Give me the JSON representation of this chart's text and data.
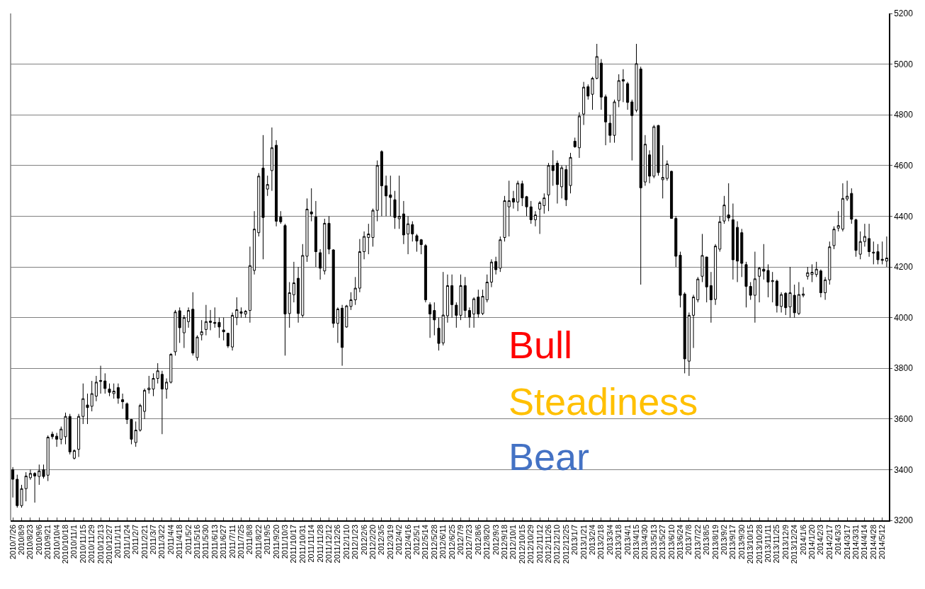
{
  "chart_data": {
    "type": "candlestick",
    "categories": [
      "2010/7/26",
      null,
      "2010/8/9",
      null,
      "2010/8/23",
      null,
      "2010/9/6",
      null,
      "2010/9/21",
      null,
      "2010/10/4",
      null,
      "2010/10/18",
      null,
      "2010/11/1",
      null,
      "2010/11/15",
      null,
      "2010/11/29",
      null,
      "2010/12/13",
      null,
      "2010/12/27",
      null,
      "2011/1/11",
      null,
      "2011/1/24",
      null,
      "2011/2/7",
      null,
      "2011/2/21",
      null,
      "2011/3/7",
      null,
      "2011/3/22",
      null,
      "2011/4/4",
      null,
      "2011/4/18",
      null,
      "2011/5/2",
      null,
      "2011/5/16",
      null,
      "2011/5/30",
      null,
      "2011/6/13",
      null,
      "2011/6/27",
      null,
      "2011/7/11",
      null,
      "2011/7/25",
      null,
      "2011/8/8",
      null,
      "2011/8/22",
      null,
      "2011/9/5",
      null,
      "2011/9/20",
      null,
      "2011/10/3",
      null,
      "2011/10/17",
      null,
      "2011/10/31",
      null,
      "2011/11/14",
      null,
      "2011/11/28",
      null,
      "2011/12/12",
      null,
      "2011/12/26",
      null,
      "2012/1/10",
      null,
      "2012/1/23",
      null,
      "2012/2/6",
      null,
      "2012/2/20",
      null,
      "2012/3/5",
      null,
      "2012/3/19",
      null,
      "2012/4/2",
      null,
      "2012/4/16",
      null,
      "2012/5/1",
      null,
      "2012/5/14",
      null,
      "2012/5/28",
      null,
      "2012/6/11",
      null,
      "2012/6/25",
      null,
      "2012/7/9",
      null,
      "2012/7/23",
      null,
      "2012/8/6",
      null,
      "2012/8/20",
      null,
      "2012/9/3",
      null,
      "2012/9/18",
      null,
      "2012/10/1",
      null,
      "2012/10/15",
      null,
      "2012/10/29",
      null,
      "2012/11/12",
      null,
      "2012/11/26",
      null,
      "2012/12/10",
      null,
      "2012/12/25",
      null,
      "2013/1/7",
      null,
      "2013/1/21",
      null,
      "2013/2/4",
      null,
      "2013/2/18",
      null,
      "2013/3/4",
      null,
      "2013/3/18",
      null,
      "2013/4/1",
      null,
      "2013/4/15",
      null,
      "2013/4/30",
      null,
      "2013/5/13",
      null,
      "2013/5/27",
      null,
      "2013/6/10",
      null,
      "2013/6/24",
      null,
      "2013/7/8",
      null,
      "2013/7/22",
      null,
      "2013/8/5",
      null,
      "2013/8/19",
      null,
      "2013/9/2",
      null,
      "2013/9/17",
      null,
      "2013/9/30",
      null,
      "2013/10/15",
      null,
      "2013/10/28",
      null,
      "2013/11/11",
      null,
      "2013/11/25",
      null,
      "2013/12/9",
      null,
      "2013/12/24",
      null,
      "2014/1/6",
      null,
      "2014/1/20",
      null,
      "2014/2/3",
      null,
      "2014/2/17",
      null,
      "2014/3/3",
      null,
      "2014/3/17",
      null,
      "2014/3/31",
      null,
      "2014/4/14",
      null,
      "2014/4/28",
      null,
      "2014/5/12",
      null
    ],
    "ohlc": [
      [
        3400,
        3410,
        3290,
        3362
      ],
      [
        3362,
        3380,
        3250,
        3258
      ],
      [
        3258,
        3340,
        3250,
        3325
      ],
      [
        3325,
        3390,
        3275,
        3375
      ],
      [
        3368,
        3400,
        3360,
        3385
      ],
      [
        3385,
        3390,
        3270,
        3375
      ],
      [
        3373,
        3420,
        3340,
        3395
      ],
      [
        3400,
        3420,
        3365,
        3373
      ],
      [
        3378,
        3535,
        3355,
        3528
      ],
      [
        3540,
        3550,
        3520,
        3530
      ],
      [
        3532,
        3545,
        3490,
        3520
      ],
      [
        3520,
        3570,
        3500,
        3560
      ],
      [
        3530,
        3625,
        3500,
        3610
      ],
      [
        3610,
        3620,
        3460,
        3470
      ],
      [
        3445,
        3480,
        3440,
        3475
      ],
      [
        3480,
        3620,
        3450,
        3610
      ],
      [
        3610,
        3740,
        3580,
        3680
      ],
      [
        3655,
        3700,
        3580,
        3645
      ],
      [
        3650,
        3750,
        3630,
        3700
      ],
      [
        3690,
        3770,
        3670,
        3745
      ],
      [
        3752,
        3810,
        3700,
        3748
      ],
      [
        3750,
        3780,
        3700,
        3720
      ],
      [
        3718,
        3740,
        3690,
        3705
      ],
      [
        3700,
        3740,
        3680,
        3710
      ],
      [
        3724,
        3740,
        3660,
        3682
      ],
      [
        3676,
        3700,
        3640,
        3668
      ],
      [
        3660,
        3665,
        3580,
        3598
      ],
      [
        3598,
        3600,
        3500,
        3520
      ],
      [
        3507,
        3590,
        3490,
        3556
      ],
      [
        3556,
        3660,
        3550,
        3653
      ],
      [
        3630,
        3720,
        3600,
        3713
      ],
      [
        3715,
        3770,
        3700,
        3722
      ],
      [
        3718,
        3780,
        3690,
        3760
      ],
      [
        3760,
        3820,
        3740,
        3790
      ],
      [
        3776,
        3790,
        3540,
        3718
      ],
      [
        3718,
        3760,
        3680,
        3745
      ],
      [
        3745,
        3860,
        3740,
        3855
      ],
      [
        3865,
        4030,
        3850,
        4022
      ],
      [
        4027,
        4040,
        3900,
        3960
      ],
      [
        3940,
        4010,
        3880,
        4000
      ],
      [
        3984,
        4040,
        3960,
        4028
      ],
      [
        4033,
        4100,
        3850,
        3860
      ],
      [
        3842,
        3930,
        3830,
        3923
      ],
      [
        3932,
        3990,
        3910,
        3944
      ],
      [
        3953,
        4050,
        3930,
        3984
      ],
      [
        3986,
        4030,
        3950,
        3981
      ],
      [
        3981,
        4040,
        3960,
        3977
      ],
      [
        3981,
        4000,
        3920,
        3963
      ],
      [
        3951,
        4000,
        3910,
        3944
      ],
      [
        3938,
        3940,
        3880,
        3888
      ],
      [
        3884,
        4020,
        3870,
        4009
      ],
      [
        4000,
        4080,
        3970,
        4031
      ],
      [
        4023,
        4040,
        4000,
        4017
      ],
      [
        4014,
        4030,
        4000,
        4025
      ],
      [
        4028,
        4280,
        3980,
        4205
      ],
      [
        4186,
        4420,
        4170,
        4349
      ],
      [
        4335,
        4570,
        4320,
        4558
      ],
      [
        4590,
        4720,
        4230,
        4395
      ],
      [
        4507,
        4560,
        4480,
        4525
      ],
      [
        4580,
        4750,
        4500,
        4670
      ],
      [
        4680,
        4700,
        4360,
        4380
      ],
      [
        4397,
        4420,
        4370,
        4378
      ],
      [
        4363,
        4370,
        3850,
        4014
      ],
      [
        4016,
        4140,
        3960,
        4098
      ],
      [
        4090,
        4220,
        4060,
        4137
      ],
      [
        4155,
        4200,
        3980,
        4016
      ],
      [
        4009,
        4290,
        4000,
        4245
      ],
      [
        4242,
        4470,
        4220,
        4428
      ],
      [
        4417,
        4510,
        4380,
        4409
      ],
      [
        4397,
        4460,
        4200,
        4260
      ],
      [
        4256,
        4270,
        4150,
        4195
      ],
      [
        4184,
        4390,
        4170,
        4372
      ],
      [
        4372,
        4400,
        4250,
        4270
      ],
      [
        4267,
        4270,
        3960,
        3977
      ],
      [
        3977,
        4040,
        3900,
        4034
      ],
      [
        4037,
        4050,
        3810,
        3882
      ],
      [
        3963,
        4050,
        3960,
        4046
      ],
      [
        4044,
        4100,
        4030,
        4070
      ],
      [
        4070,
        4160,
        4050,
        4116
      ],
      [
        4116,
        4310,
        4100,
        4260
      ],
      [
        4260,
        4340,
        4230,
        4320
      ],
      [
        4316,
        4370,
        4250,
        4330
      ],
      [
        4316,
        4430,
        4280,
        4423
      ],
      [
        4423,
        4620,
        4380,
        4600
      ],
      [
        4655,
        4660,
        4400,
        4520
      ],
      [
        4520,
        4560,
        4400,
        4480
      ],
      [
        4484,
        4560,
        4400,
        4474
      ],
      [
        4465,
        4500,
        4350,
        4395
      ],
      [
        4390,
        4560,
        4350,
        4400
      ],
      [
        4409,
        4460,
        4290,
        4326
      ],
      [
        4330,
        4400,
        4250,
        4370
      ],
      [
        4367,
        4380,
        4300,
        4330
      ],
      [
        4323,
        4330,
        4260,
        4302
      ],
      [
        4307,
        4310,
        4250,
        4288
      ],
      [
        4284,
        4290,
        4060,
        4070
      ],
      [
        4051,
        4060,
        3920,
        4014
      ],
      [
        4028,
        4060,
        3930,
        3991
      ],
      [
        3958,
        4000,
        3870,
        3898
      ],
      [
        3900,
        4180,
        3890,
        4010
      ],
      [
        4007,
        4170,
        3980,
        4126
      ],
      [
        4126,
        4170,
        4000,
        4051
      ],
      [
        4049,
        4060,
        3960,
        4009
      ],
      [
        4009,
        4170,
        3990,
        4126
      ],
      [
        4126,
        4160,
        4000,
        4028
      ],
      [
        4028,
        4040,
        3960,
        4002
      ],
      [
        4014,
        4080,
        3960,
        4074
      ],
      [
        4081,
        4110,
        4000,
        4014
      ],
      [
        4016,
        4110,
        4010,
        4084
      ],
      [
        4070,
        4170,
        4060,
        4140
      ],
      [
        4140,
        4230,
        4120,
        4219
      ],
      [
        4221,
        4240,
        4170,
        4189
      ],
      [
        4195,
        4320,
        4180,
        4307
      ],
      [
        4316,
        4480,
        4300,
        4461
      ],
      [
        4437,
        4540,
        4320,
        4461
      ],
      [
        4470,
        4500,
        4430,
        4456
      ],
      [
        4456,
        4540,
        4420,
        4530
      ],
      [
        4528,
        4540,
        4440,
        4472
      ],
      [
        4477,
        4480,
        4400,
        4437
      ],
      [
        4437,
        4460,
        4370,
        4386
      ],
      [
        4386,
        4420,
        4360,
        4405
      ],
      [
        4428,
        4460,
        4330,
        4453
      ],
      [
        4442,
        4490,
        4410,
        4472
      ],
      [
        4484,
        4610,
        4420,
        4600
      ],
      [
        4600,
        4660,
        4520,
        4580
      ],
      [
        4609,
        4620,
        4450,
        4525
      ],
      [
        4516,
        4600,
        4470,
        4591
      ],
      [
        4584,
        4600,
        4440,
        4465
      ],
      [
        4521,
        4650,
        4490,
        4632
      ],
      [
        4696,
        4710,
        4670,
        4674
      ],
      [
        4670,
        4810,
        4630,
        4795
      ],
      [
        4803,
        4930,
        4760,
        4909
      ],
      [
        4911,
        4920,
        4860,
        4874
      ],
      [
        4881,
        4950,
        4820,
        4944
      ],
      [
        4944,
        5080,
        4940,
        5030
      ],
      [
        5004,
        5020,
        4820,
        4870
      ],
      [
        4871,
        4880,
        4680,
        4772
      ],
      [
        4767,
        4800,
        4690,
        4719
      ],
      [
        4719,
        4860,
        4690,
        4851
      ],
      [
        4856,
        4960,
        4830,
        4935
      ],
      [
        4939,
        4980,
        4850,
        4933
      ],
      [
        4923,
        4930,
        4820,
        4849
      ],
      [
        4851,
        4860,
        4620,
        4797
      ],
      [
        4818,
        5080,
        4810,
        5002
      ],
      [
        4981,
        4990,
        4130,
        4512
      ],
      [
        4535,
        4720,
        4520,
        4684
      ],
      [
        4642,
        4660,
        4530,
        4558
      ],
      [
        4558,
        4760,
        4550,
        4753
      ],
      [
        4758,
        4760,
        4560,
        4572
      ],
      [
        4544,
        4680,
        4470,
        4553
      ],
      [
        4549,
        4620,
        4540,
        4606
      ],
      [
        4577,
        4580,
        4390,
        4391
      ],
      [
        4391,
        4400,
        4200,
        4242
      ],
      [
        4246,
        4260,
        4040,
        4088
      ],
      [
        4093,
        4100,
        3780,
        3837
      ],
      [
        3828,
        4020,
        3770,
        4009
      ],
      [
        4009,
        4090,
        3880,
        4081
      ],
      [
        4070,
        4160,
        4060,
        4152
      ],
      [
        4163,
        4330,
        4140,
        4245
      ],
      [
        4239,
        4240,
        4060,
        4121
      ],
      [
        4126,
        4180,
        3980,
        4070
      ],
      [
        4072,
        4290,
        4050,
        4282
      ],
      [
        4270,
        4400,
        4260,
        4378
      ],
      [
        4381,
        4480,
        4370,
        4444
      ],
      [
        4405,
        4530,
        4380,
        4393
      ],
      [
        4386,
        4450,
        4150,
        4228
      ],
      [
        4356,
        4380,
        4140,
        4223
      ],
      [
        4335,
        4350,
        4160,
        4214
      ],
      [
        4209,
        4220,
        4040,
        4123
      ],
      [
        4123,
        4140,
        4070,
        4088
      ],
      [
        4088,
        4260,
        3980,
        4153
      ],
      [
        4163,
        4200,
        4060,
        4195
      ],
      [
        4191,
        4290,
        4150,
        4183
      ],
      [
        4186,
        4210,
        4080,
        4140
      ],
      [
        4142,
        4180,
        4060,
        4146
      ],
      [
        4144,
        4150,
        4020,
        4047
      ],
      [
        4044,
        4100,
        4020,
        4091
      ],
      [
        4096,
        4100,
        4010,
        4039
      ],
      [
        4042,
        4200,
        4000,
        4098
      ],
      [
        4088,
        4130,
        4000,
        4019
      ],
      [
        4016,
        4140,
        4010,
        4091
      ],
      [
        4088,
        4120,
        4080,
        4093
      ],
      [
        4163,
        4200,
        4150,
        4177
      ],
      [
        4170,
        4210,
        4140,
        4179
      ],
      [
        4170,
        4220,
        4160,
        4191
      ],
      [
        4184,
        4190,
        4080,
        4098
      ],
      [
        4098,
        4160,
        4070,
        4149
      ],
      [
        4149,
        4300,
        4130,
        4279
      ],
      [
        4284,
        4360,
        4270,
        4349
      ],
      [
        4353,
        4420,
        4340,
        4363
      ],
      [
        4349,
        4530,
        4340,
        4470
      ],
      [
        4468,
        4540,
        4460,
        4479
      ],
      [
        4490,
        4510,
        4370,
        4388
      ],
      [
        4386,
        4390,
        4240,
        4265
      ],
      [
        4250,
        4340,
        4230,
        4300
      ],
      [
        4300,
        4370,
        4280,
        4320
      ],
      [
        4312,
        4370,
        4240,
        4260
      ],
      [
        4258,
        4300,
        4210,
        4255
      ],
      [
        4260,
        4290,
        4210,
        4228
      ],
      [
        4230,
        4300,
        4210,
        4226
      ],
      [
        4223,
        4320,
        4200,
        4235
      ]
    ],
    "ylim": [
      3200,
      5200
    ],
    "yticks": [
      3200,
      3400,
      3600,
      3800,
      4000,
      4200,
      4400,
      4600,
      4800,
      5000,
      5200
    ],
    "grid": "y",
    "annotations": [
      "Bull",
      "Steadiness",
      "Bear"
    ]
  }
}
